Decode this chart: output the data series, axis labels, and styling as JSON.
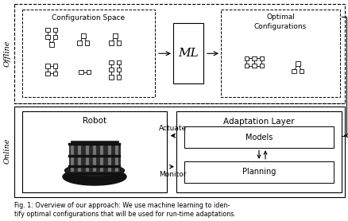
{
  "bg_color": "#ffffff",
  "title_text": "Fig. 1: Overview of our approach: We use machine learning to iden-\ntify optimal configurations that will be used for run-time adaptations.",
  "offline_label": "Offline",
  "online_label": "Online",
  "config_space_label": "Configuration Space",
  "optimal_config_label": "Optimal\nConfigurations",
  "ml_label": "ML",
  "robot_label": "Robot",
  "adaptation_label": "Adaptation Layer",
  "models_label": "Models",
  "planning_label": "Planning",
  "actuate_label": "Actuate",
  "monitor_label": "Monitor"
}
